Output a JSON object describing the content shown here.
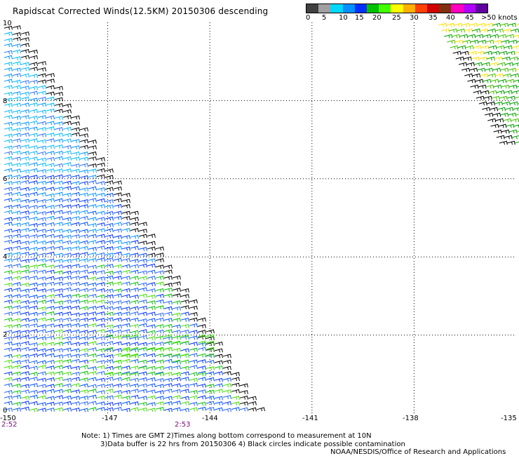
{
  "header": {
    "title": "Rapidscat Corrected Winds(12.5KM) 20150306 descending"
  },
  "colorbar": {
    "colors": [
      "#404040",
      "#a0a0a0",
      "#00d8ff",
      "#0090ff",
      "#0030ff",
      "#00c000",
      "#40ff00",
      "#ffff00",
      "#ffb000",
      "#ff4000",
      "#d00000",
      "#803010",
      "#ff00c0",
      "#b000ff",
      "#6000a0"
    ],
    "labels": [
      "0",
      "5",
      "10",
      "15",
      "20",
      "25",
      "30",
      "35",
      "40",
      "45",
      ">50 knots"
    ]
  },
  "axes": {
    "y_labels": [
      "10",
      "8",
      "6",
      "4",
      "2",
      "0"
    ],
    "x_labels": [
      "-150",
      "-147",
      "-144",
      "-141",
      "-138",
      "-135"
    ],
    "time_labels": [
      "2:52",
      "2:53"
    ]
  },
  "notes": {
    "line1": "Note: 1) Times are GMT 2)Times along bottom correspond to measurement at 10N",
    "line2": "3)Data buffer is 22 hrs from 20150306 4) Black circles indicate possible contamination",
    "credit": "NOAA/NESDIS/Office of Research and Applications"
  },
  "map_data": {
    "lon_range": [
      -150,
      -135
    ],
    "lat_range": [
      0,
      10
    ],
    "grid": "dotted",
    "swath_main": "wedge from 10N at 150W to 0N at 143.5W",
    "swath_ne": "strip near 10N-7N east of 137W"
  }
}
